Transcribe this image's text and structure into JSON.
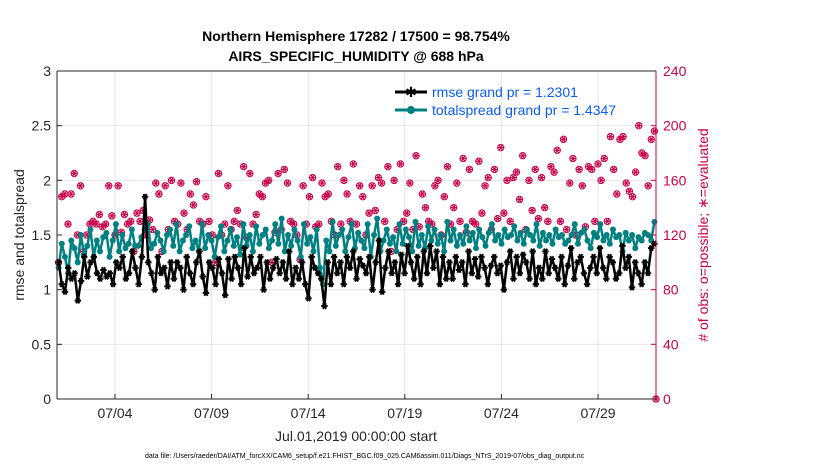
{
  "chart_data": {
    "type": "line",
    "title_line1": "Northern Hemisphere 17282 / 17500 = 98.754%",
    "title_line2": "AIRS_SPECIFIC_HUMIDITY @ 688 hPa",
    "xlabel": "Jul.01,2019 00:00:00 start",
    "ylabel_left": "rmse and totalspread",
    "ylabel_right": "# of obs: o=possible; ∗=evaluated",
    "ylim_left": [
      0,
      3
    ],
    "ylim_right": [
      0,
      240
    ],
    "xlim_days": [
      1.0,
      32.0
    ],
    "x_ticks": [
      {
        "day": 4,
        "label": "07/04"
      },
      {
        "day": 9,
        "label": "07/09"
      },
      {
        "day": 14,
        "label": "07/14"
      },
      {
        "day": 19,
        "label": "07/19"
      },
      {
        "day": 24,
        "label": "07/24"
      },
      {
        "day": 29,
        "label": "07/29"
      }
    ],
    "y_ticks_left": [
      "0",
      "0.5",
      "1",
      "1.5",
      "2",
      "2.5",
      "3"
    ],
    "y_ticks_right": [
      "0",
      "40",
      "80",
      "120",
      "160",
      "200",
      "240"
    ],
    "grid": true,
    "legend_position": "top-right",
    "footnote": "data file: /Users/raeder/DAI/ATM_forcXX/CAM6_setup/f.e21.FHIST_BGC.f09_025.CAM6assim.011/Diags_NTrS_2019-07/obs_diag_output.nc",
    "series": [
      {
        "name": "rmse grand pr = 1.2301",
        "axis": "left",
        "color": "#000000",
        "values": [
          1.25,
          1.05,
          0.98,
          1.2,
          1.1,
          1.15,
          0.9,
          1.08,
          1.3,
          1.12,
          1.25,
          1.3,
          1.15,
          1.1,
          1.18,
          1.12,
          1.15,
          1.05,
          1.25,
          1.2,
          1.3,
          1.1,
          1.15,
          1.35,
          1.2,
          1.05,
          1.3,
          1.85,
          1.25,
          1.15,
          1.0,
          1.3,
          1.15,
          1.2,
          1.03,
          1.25,
          1.1,
          1.25,
          1.2,
          1.0,
          1.3,
          1.15,
          1.05,
          1.25,
          1.35,
          1.12,
          0.97,
          1.25,
          1.2,
          1.05,
          1.28,
          1.15,
          0.95,
          1.28,
          1.1,
          1.3,
          1.2,
          1.05,
          1.38,
          1.12,
          1.3,
          1.15,
          1.2,
          1.3,
          1.0,
          1.25,
          1.1,
          1.2,
          1.28,
          1.15,
          1.25,
          1.1,
          1.35,
          1.05,
          1.2,
          1.1,
          1.25,
          1.05,
          0.92,
          1.3,
          1.2,
          1.15,
          1.1,
          0.85,
          1.25,
          1.05,
          1.3,
          1.15,
          1.25,
          1.05,
          1.3,
          1.2,
          1.35,
          1.1,
          1.28,
          1.22,
          1.15,
          1.3,
          1.0,
          1.25,
          1.45,
          0.98,
          1.2,
          1.35,
          1.15,
          1.25,
          1.05,
          1.32,
          1.15,
          1.4,
          1.25,
          1.1,
          1.3,
          1.05,
          1.35,
          1.15,
          1.4,
          1.2,
          1.35,
          1.05,
          1.3,
          1.1,
          1.25,
          1.1,
          1.3,
          1.18,
          1.25,
          1.05,
          1.35,
          1.15,
          1.28,
          1.12,
          1.3,
          1.2,
          1.05,
          1.22,
          1.3,
          1.15,
          1.22,
          1.0,
          1.25,
          1.35,
          1.1,
          1.3,
          1.15,
          1.32,
          1.25,
          1.1,
          1.35,
          1.05,
          1.2,
          1.1,
          1.35,
          1.15,
          1.28,
          1.2,
          1.1,
          1.3,
          1.05,
          1.22,
          1.38,
          1.1,
          1.25,
          1.3,
          1.15,
          1.05,
          1.2,
          1.3,
          1.15,
          1.38,
          1.2,
          1.1,
          1.3,
          1.25,
          1.1,
          1.15,
          1.4,
          1.2,
          1.3,
          1.02,
          1.25,
          1.15,
          1.05,
          1.25,
          1.15,
          1.38,
          1.42
        ]
      },
      {
        "name": "totalspread grand pr = 1.4347",
        "axis": "left",
        "color": "#008080",
        "values": [
          1.2,
          1.42,
          1.3,
          1.15,
          1.45,
          1.38,
          1.25,
          1.5,
          1.32,
          1.4,
          1.55,
          1.3,
          1.45,
          1.35,
          1.48,
          1.52,
          1.3,
          1.45,
          1.6,
          1.35,
          1.5,
          1.38,
          1.42,
          1.55,
          1.4,
          1.4,
          1.48,
          1.55,
          1.6,
          1.38,
          1.42,
          1.52,
          1.45,
          1.35,
          1.5,
          1.55,
          1.4,
          1.6,
          1.35,
          1.45,
          1.5,
          1.58,
          1.38,
          1.45,
          1.35,
          1.6,
          1.38,
          1.5,
          1.45,
          1.3,
          1.48,
          1.58,
          1.35,
          1.45,
          1.55,
          1.4,
          1.48,
          1.32,
          1.6,
          1.4,
          1.5,
          1.35,
          1.58,
          1.42,
          1.5,
          1.55,
          1.38,
          1.45,
          1.6,
          1.42,
          1.65,
          1.35,
          1.5,
          1.4,
          1.55,
          1.45,
          1.3,
          1.6,
          1.42,
          1.48,
          1.35,
          1.55,
          1.2,
          1.05,
          1.45,
          1.35,
          1.62,
          1.4,
          1.5,
          1.55,
          1.35,
          1.48,
          1.6,
          1.38,
          1.52,
          1.45,
          1.38,
          1.6,
          1.3,
          1.5,
          1.65,
          1.35,
          1.45,
          1.55,
          1.42,
          1.48,
          1.35,
          1.6,
          1.42,
          1.55,
          1.48,
          1.35,
          1.62,
          1.4,
          1.5,
          1.38,
          1.58,
          1.45,
          1.55,
          1.42,
          1.5,
          1.35,
          1.62,
          1.45,
          1.55,
          1.4,
          1.5,
          1.42,
          1.58,
          1.45,
          1.52,
          1.38,
          1.55,
          1.48,
          1.4,
          1.52,
          1.6,
          1.45,
          1.5,
          1.42,
          1.55,
          1.48,
          1.5,
          1.58,
          1.45,
          1.52,
          1.42,
          1.55,
          1.5,
          1.45,
          1.6,
          1.4,
          1.52,
          1.45,
          1.5,
          1.42,
          1.55,
          1.48,
          1.5,
          1.42,
          1.45,
          1.5,
          1.6,
          1.42,
          1.52,
          1.55,
          1.45,
          1.38,
          1.52,
          1.48,
          1.6,
          1.45,
          1.5,
          1.42,
          1.55,
          1.48,
          1.5,
          1.35,
          1.52,
          1.45,
          1.5,
          1.38,
          1.48,
          1.45,
          1.52,
          1.5,
          1.45,
          1.62
        ]
      },
      {
        "name": "possible",
        "axis": "right",
        "color": "#c8004b",
        "marker": "o",
        "values": [
          100,
          148,
          150,
          128,
          150,
          165,
          120,
          156,
          108,
          120,
          128,
          130,
          128,
          135,
          126,
          128,
          156,
          134,
          120,
          156,
          122,
          135,
          128,
          130,
          108,
          136,
          130,
          138,
          120,
          131,
          124,
          158,
          150,
          108,
          156,
          124,
          160,
          130,
          128,
          158,
          136,
          124,
          150,
          142,
          159,
          130,
          128,
          148,
          130,
          120,
          100,
          165,
          120,
          128,
          156,
          124,
          130,
          138,
          128,
          170,
          118,
          165,
          128,
          135,
          150,
          148,
          158,
          160,
          100,
          122,
          165,
          124,
          168,
          158,
          130,
          128,
          120,
          102,
          156,
          128,
          148,
          162,
          126,
          128,
          158,
          148,
          150,
          130,
          120,
          170,
          128,
          160,
          150,
          130,
          172,
          128,
          156,
          148,
          120,
          136,
          156,
          138,
          162,
          158,
          130,
          170,
          108,
          160,
          124,
          172,
          130,
          136,
          158,
          124,
          178,
          126,
          150,
          140,
          130,
          128,
          156,
          160,
          120,
          148,
          170,
          128,
          140,
          158,
          130,
          176,
          122,
          168,
          130,
          128,
          174,
          136,
          156,
          162,
          124,
          168,
          132,
          184,
          136,
          160,
          130,
          162,
          166,
          146,
          178,
          124,
          160,
          138,
          168,
          132,
          162,
          140,
          130,
          170,
          166,
          182,
          130,
          190,
          124,
          158,
          176,
          120,
          168,
          156,
          126,
          170,
          168,
          130,
          172,
          160,
          176,
          130,
          192,
          168,
          150,
          190,
          192,
          158,
          152,
          148,
          166,
          200,
          180,
          178,
          156,
          190,
          196
        ]
      },
      {
        "name": "evaluated",
        "axis": "right",
        "color": "#c8004b",
        "marker": "*",
        "values": [
          100,
          148,
          150,
          128,
          150,
          165,
          120,
          156,
          108,
          120,
          128,
          130,
          128,
          135,
          126,
          128,
          156,
          134,
          120,
          156,
          122,
          135,
          128,
          130,
          108,
          136,
          130,
          138,
          120,
          131,
          124,
          158,
          150,
          108,
          156,
          124,
          160,
          130,
          128,
          158,
          136,
          124,
          150,
          142,
          159,
          130,
          128,
          148,
          130,
          120,
          100,
          165,
          120,
          128,
          156,
          124,
          130,
          138,
          128,
          170,
          118,
          165,
          128,
          135,
          150,
          148,
          158,
          160,
          100,
          122,
          165,
          124,
          168,
          158,
          130,
          128,
          120,
          102,
          156,
          128,
          148,
          162,
          126,
          128,
          158,
          148,
          150,
          130,
          120,
          170,
          128,
          160,
          150,
          130,
          172,
          128,
          156,
          148,
          120,
          136,
          156,
          138,
          162,
          158,
          130,
          170,
          108,
          160,
          124,
          172,
          130,
          136,
          158,
          124,
          178,
          126,
          150,
          140,
          130,
          128,
          156,
          160,
          120,
          148,
          170,
          128,
          140,
          158,
          130,
          176,
          122,
          168,
          130,
          128,
          174,
          136,
          156,
          162,
          124,
          168,
          132,
          184,
          136,
          160,
          130,
          162,
          166,
          146,
          178,
          124,
          160,
          138,
          168,
          132,
          162,
          140,
          130,
          170,
          166,
          182,
          130,
          190,
          124,
          158,
          176,
          120,
          168,
          156,
          126,
          170,
          168,
          130,
          172,
          160,
          176,
          130,
          192,
          168,
          150,
          190,
          192,
          158,
          152,
          148,
          166,
          200,
          180,
          178,
          156,
          190,
          196
        ]
      }
    ],
    "last_obs_zero": true
  }
}
